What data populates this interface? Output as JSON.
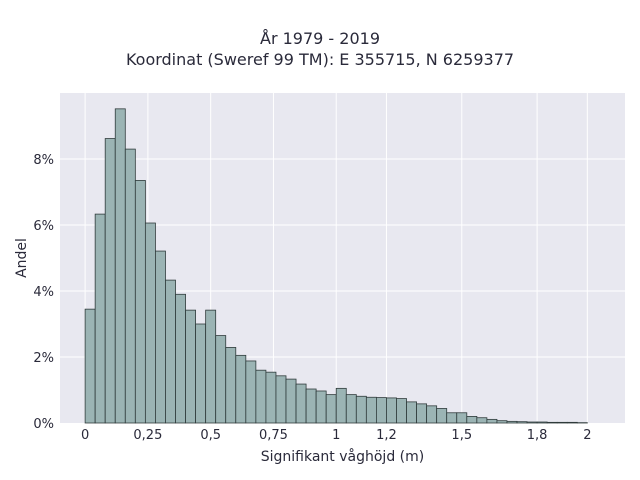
{
  "chart_data": {
    "type": "bar",
    "title": [
      "År 1979 - 2019",
      "Koordinat (Sweref 99 TM): E 355715, N 6259377"
    ],
    "xlabel": "Signifikant våghöjd (m)",
    "ylabel": "Andel",
    "bin_width": 0.04,
    "bin_start": 0,
    "xlim": [
      -0.1,
      2.15
    ],
    "ylim": [
      0,
      0.1
    ],
    "xticks": [
      {
        "value": 0,
        "label": "0"
      },
      {
        "value": 0.25,
        "label": "0,25"
      },
      {
        "value": 0.5,
        "label": "0,5"
      },
      {
        "value": 0.75,
        "label": "0,75"
      },
      {
        "value": 1,
        "label": "1"
      },
      {
        "value": 1.2,
        "label": "1,2"
      },
      {
        "value": 1.5,
        "label": "1,5"
      },
      {
        "value": 1.8,
        "label": "1,8"
      },
      {
        "value": 2,
        "label": "2"
      }
    ],
    "yticks": [
      {
        "value": 0,
        "label": "0%"
      },
      {
        "value": 0.02,
        "label": "2%"
      },
      {
        "value": 0.04,
        "label": "4%"
      },
      {
        "value": 0.06,
        "label": "6%"
      },
      {
        "value": 0.08,
        "label": "8%"
      }
    ],
    "values": [
      0.0345,
      0.0633,
      0.0862,
      0.0952,
      0.083,
      0.0735,
      0.0606,
      0.0521,
      0.0433,
      0.039,
      0.0342,
      0.03,
      0.0342,
      0.0265,
      0.0229,
      0.0205,
      0.0188,
      0.016,
      0.0154,
      0.0143,
      0.0133,
      0.0118,
      0.0103,
      0.0097,
      0.0086,
      0.0105,
      0.0086,
      0.0081,
      0.0078,
      0.0077,
      0.0076,
      0.0074,
      0.0064,
      0.0058,
      0.0052,
      0.0044,
      0.0031,
      0.0031,
      0.002,
      0.0016,
      0.0011,
      0.0007,
      0.0005,
      0.0004,
      0.0003,
      0.0003,
      0.0002,
      0.0002,
      0.0002,
      0.0001
    ],
    "grid": true,
    "colors": {
      "plot_bg": "#e8e8f0",
      "grid": "#ffffff",
      "bar_fill": "#9bb4b4",
      "bar_stroke": "#2f3b3b",
      "text": "#2a2a3a"
    }
  }
}
